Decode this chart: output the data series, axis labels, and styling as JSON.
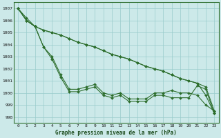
{
  "xlabel": "Graphe pression niveau de la mer (hPa)",
  "xlim": [
    -0.5,
    23.5
  ],
  "ylim": [
    997.5,
    1007.5
  ],
  "yticks": [
    998,
    999,
    1000,
    1001,
    1002,
    1003,
    1004,
    1005,
    1006,
    1007
  ],
  "xticks": [
    0,
    1,
    2,
    3,
    4,
    5,
    6,
    7,
    8,
    9,
    10,
    11,
    12,
    13,
    14,
    15,
    16,
    17,
    18,
    19,
    20,
    21,
    22,
    23
  ],
  "background_color": "#cce9e9",
  "grid_color": "#99cccc",
  "line_color": "#2d6e2d",
  "line1": [
    1007.0,
    1006.2,
    1005.5,
    1005.2,
    1005.0,
    1004.8,
    1004.5,
    1004.2,
    1004.0,
    1003.8,
    1003.5,
    1003.2,
    1003.0,
    1002.8,
    1002.5,
    1002.2,
    1002.0,
    1001.8,
    1001.5,
    1001.2,
    1001.0,
    1000.8,
    1000.5,
    998.5
  ],
  "line2": [
    1007.0,
    1006.0,
    1005.5,
    1003.8,
    1003.0,
    1001.5,
    1000.3,
    1000.3,
    1000.5,
    1000.7,
    1000.0,
    999.8,
    1000.0,
    999.5,
    999.5,
    999.5,
    1000.0,
    1000.0,
    1000.2,
    1000.0,
    1000.0,
    999.8,
    999.0,
    998.5
  ],
  "line3": [
    1007.0,
    1006.0,
    1005.5,
    1003.8,
    1002.8,
    1001.3,
    1000.1,
    1000.1,
    1000.3,
    1000.5,
    999.8,
    999.6,
    999.8,
    999.3,
    999.3,
    999.3,
    999.8,
    999.8,
    999.6,
    999.6,
    999.6,
    1000.6,
    1000.3,
    998.3
  ],
  "line4": [
    1007.0,
    1006.0,
    1005.5,
    1005.2,
    1005.0,
    1004.8,
    1004.5,
    1004.2,
    1004.0,
    1003.8,
    1003.5,
    1003.2,
    1003.0,
    1002.8,
    1002.5,
    1002.2,
    1002.0,
    1001.8,
    1001.5,
    1001.2,
    1001.0,
    1000.8,
    999.8,
    998.3
  ],
  "xlabel_fontsize": 5.5,
  "tick_fontsize": 4.5,
  "linewidth": 0.8,
  "markersize": 2.0
}
